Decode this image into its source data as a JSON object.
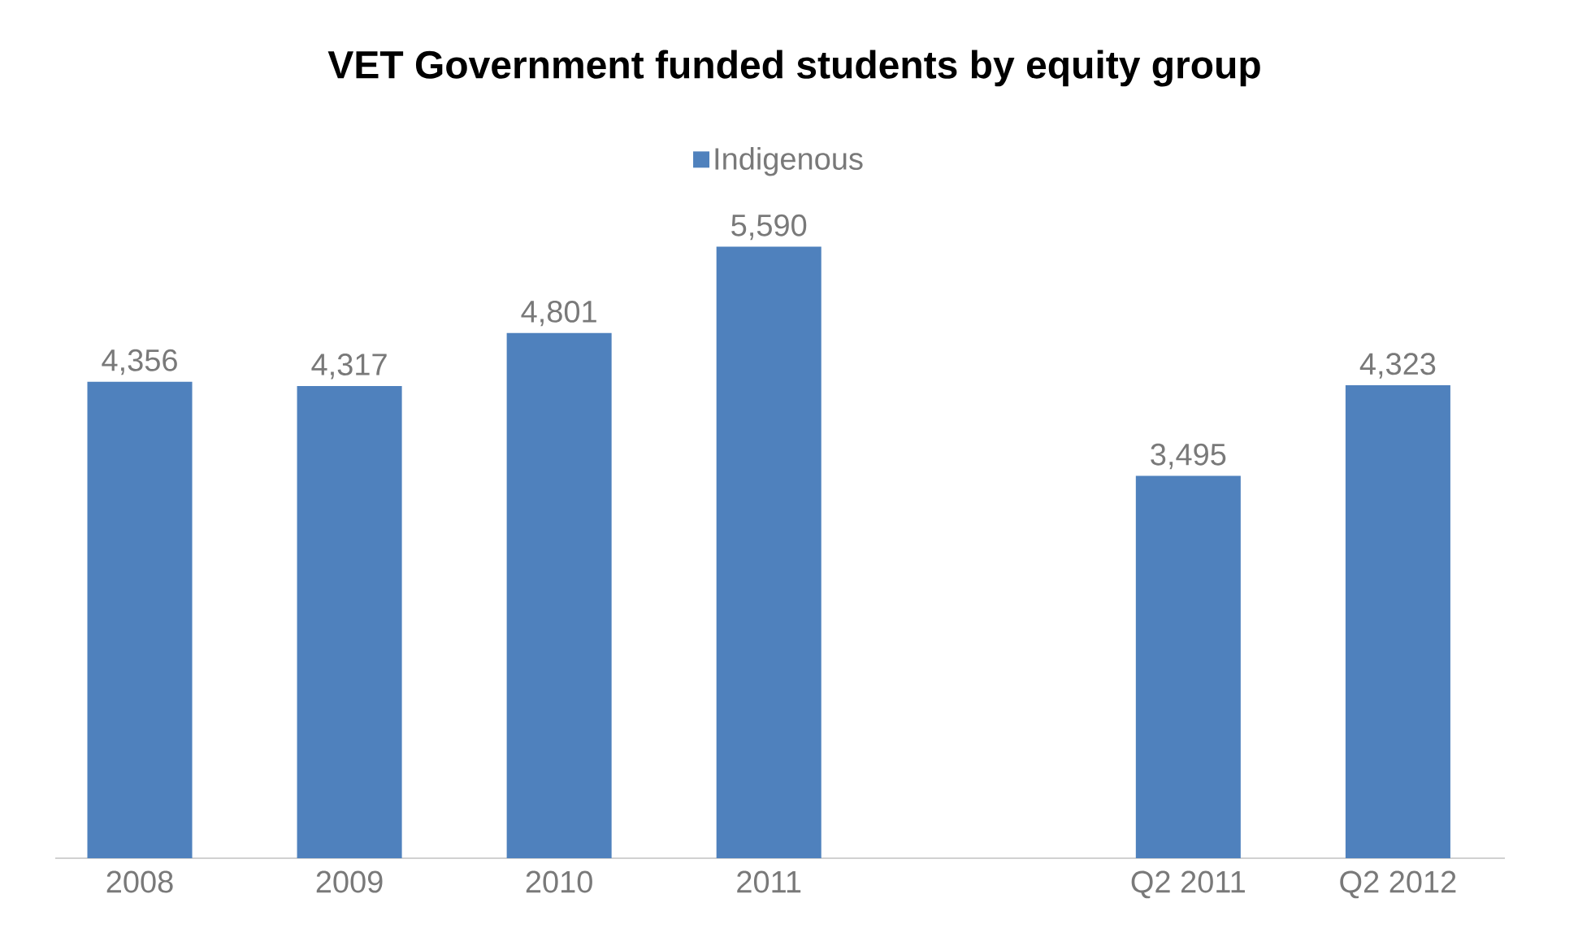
{
  "chart_data": {
    "type": "bar",
    "title": "VET Government funded students by equity group",
    "categories": [
      "2008",
      "2009",
      "2010",
      "2011",
      null,
      "Q2 2011",
      "Q2 2012"
    ],
    "series": [
      {
        "name": "Indigenous",
        "color": "#4f81bd",
        "values": [
          4356,
          4317,
          4801,
          5590,
          null,
          3495,
          4323
        ],
        "value_labels": [
          "4,356",
          "4,317",
          "4,801",
          "5,590",
          null,
          "3,495",
          "4,323"
        ]
      }
    ],
    "legend": "top"
  }
}
